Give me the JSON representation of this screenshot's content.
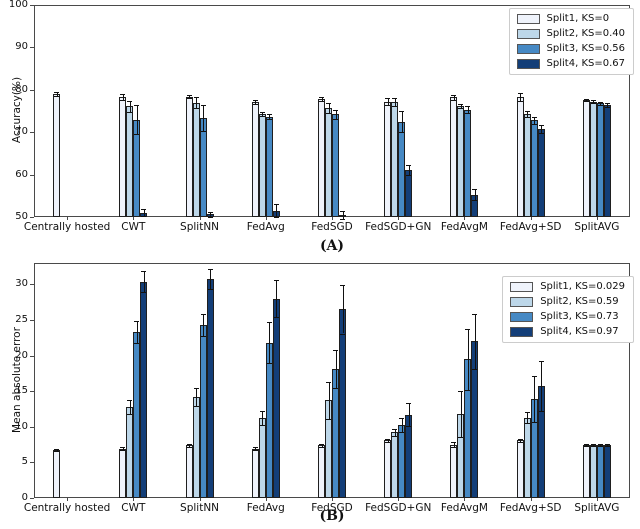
{
  "figure": {
    "background": "#ffffff",
    "bar_edge_color": "#1f1f1f",
    "axis_color": "#4a4a4a"
  },
  "chart_data": [
    {
      "id": "A",
      "type": "bar",
      "caption": "(A)",
      "ylabel": "Accuracy(%)",
      "ylim": [
        50,
        100
      ],
      "yticks": [
        50,
        60,
        70,
        80,
        90,
        100
      ],
      "grid": false,
      "legend_position": "top-right",
      "categories": [
        "Centrally hosted",
        "CWT",
        "SplitNN",
        "FedAvg",
        "FedSGD",
        "FedSGD+GN",
        "FedAvgM",
        "FedAvg+SD",
        "SplitAVG"
      ],
      "series": [
        {
          "name": "Split1, KS=0",
          "color": "#eff3fb",
          "values": [
            79,
            78.3,
            78.4,
            77.1,
            77.8,
            77.2,
            78.2,
            78.3,
            77.6
          ],
          "errors": [
            0.4,
            0.6,
            0.4,
            0.4,
            0.4,
            0.8,
            0.5,
            1.0,
            0.3
          ]
        },
        {
          "name": "Split2, KS=0.40",
          "color": "#bdd7e9",
          "values": [
            null,
            76.1,
            77.0,
            74.3,
            75.7,
            77.1,
            76.2,
            74.3,
            77.2
          ],
          "errors": [
            null,
            1.3,
            1.2,
            0.5,
            1.2,
            1.0,
            0.5,
            0.8,
            0.4
          ]
        },
        {
          "name": "Split3, KS=0.56",
          "color": "#4689c4",
          "values": [
            null,
            72.9,
            73.4,
            73.7,
            74.2,
            72.5,
            75.3,
            72.8,
            76.8
          ],
          "errors": [
            null,
            3.4,
            3.0,
            0.6,
            1.0,
            2.5,
            0.8,
            0.8,
            0.4
          ]
        },
        {
          "name": "Split4, KS=0.67",
          "color": "#133e78",
          "values": [
            null,
            51.0,
            50.6,
            51.5,
            50.5,
            61.0,
            55.2,
            70.8,
            76.4
          ],
          "errors": [
            null,
            0.8,
            0.6,
            1.5,
            1.0,
            1.2,
            1.3,
            0.9,
            0.4
          ]
        }
      ]
    },
    {
      "id": "B",
      "type": "bar",
      "caption": "(B)",
      "ylabel": "Mean absolute error",
      "ylim": [
        0,
        33
      ],
      "yticks": [
        0,
        5,
        10,
        15,
        20,
        25,
        30
      ],
      "grid": false,
      "legend_position": "top-right",
      "categories": [
        "Centrally hosted",
        "CWT",
        "SplitNN",
        "FedAvg",
        "FedSGD",
        "FedSGD+GN",
        "FedAvgM",
        "FedAvg+SD",
        "SplitAVG"
      ],
      "series": [
        {
          "name": "Split1, KS=0.029",
          "color": "#eff3fb",
          "values": [
            6.7,
            6.9,
            7.4,
            6.9,
            7.4,
            8.1,
            7.5,
            8.1,
            7.5
          ],
          "errors": [
            0.15,
            0.2,
            0.2,
            0.2,
            0.2,
            0.25,
            0.3,
            0.25,
            0.15
          ]
        },
        {
          "name": "Split2, KS=0.59",
          "color": "#bdd7e9",
          "values": [
            null,
            12.8,
            14.2,
            11.2,
            13.7,
            9.2,
            11.8,
            11.3,
            7.5
          ],
          "errors": [
            null,
            1.0,
            1.3,
            1.0,
            2.6,
            0.5,
            3.2,
            0.8,
            0.15
          ]
        },
        {
          "name": "Split3, KS=0.73",
          "color": "#4689c4",
          "values": [
            null,
            23.3,
            24.3,
            21.8,
            18.1,
            10.2,
            19.5,
            13.9,
            7.5
          ],
          "errors": [
            null,
            1.5,
            1.6,
            2.9,
            2.7,
            1.0,
            4.3,
            3.2,
            0.15
          ]
        },
        {
          "name": "Split4, KS=0.97",
          "color": "#133e78",
          "values": [
            null,
            30.4,
            30.8,
            28.0,
            26.5,
            11.7,
            22.0,
            15.7,
            7.5
          ],
          "errors": [
            null,
            1.5,
            1.4,
            2.6,
            3.4,
            1.6,
            3.9,
            3.5,
            0.15
          ]
        }
      ]
    }
  ]
}
